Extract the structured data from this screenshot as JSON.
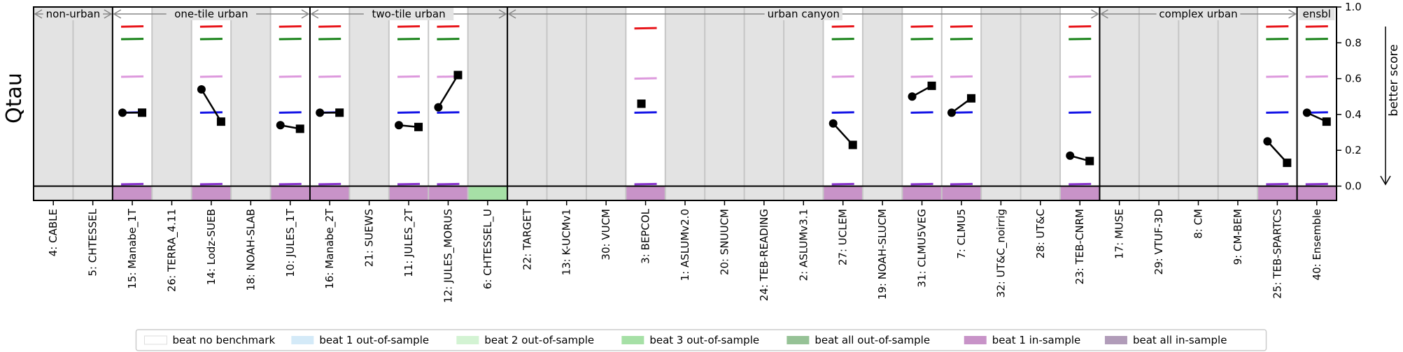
{
  "chart_data": {
    "type": "scatter",
    "ylabel": "Qtau",
    "y2label": "better score",
    "ylim": [
      -0.08,
      1.0
    ],
    "yticks": [
      "0.0",
      "0.2",
      "0.4",
      "0.6",
      "0.8",
      "1.0"
    ],
    "ytick_values": [
      0.0,
      0.2,
      0.4,
      0.6,
      0.8,
      1.0
    ],
    "categories": [
      "4: CABLE",
      "5: CHTESSEL",
      "15: Manabe_1T",
      "26: TERRA_4.11",
      "14: Lodz-SUEB",
      "18: NOAH-SLAB",
      "10: JULES_1T",
      "16: Manabe_2T",
      "21: SUEWS",
      "11: JULES_2T",
      "12: JULES_MORUS",
      "6: CHTESSEL_U",
      "22: TARGET",
      "13: K-UCMv1",
      "30: VUCM",
      "3: BEPCOL",
      "1: ASLUMv2.0",
      "20: SNUUCM",
      "24: TEB-READING",
      "2: ASLUMv3.1",
      "27: UCLEM",
      "19: NOAH-SLUCM",
      "31: CLMU5VEG",
      "7: CLMU5",
      "32: UT&C_noirrig",
      "28: UT&C",
      "23: TEB-CNRM",
      "17: MUSE",
      "29: VTUF-3D",
      "8: CM",
      "9: CM-BEM",
      "25: TEB-SPARTCS",
      "40: Ensemble"
    ],
    "groups": [
      {
        "label": "non-urban",
        "range": [
          0,
          1
        ]
      },
      {
        "label": "one-tile urban",
        "range": [
          2,
          6
        ]
      },
      {
        "label": "two-tile urban",
        "range": [
          7,
          11
        ]
      },
      {
        "label": "urban canyon",
        "range": [
          12,
          26
        ]
      },
      {
        "label": "complex urban",
        "range": [
          27,
          31
        ]
      },
      {
        "label": "ensbl",
        "range": [
          32,
          32
        ]
      }
    ],
    "has_data": [
      2,
      4,
      6,
      7,
      9,
      10,
      15,
      20,
      22,
      23,
      26,
      31,
      32
    ],
    "benchmark_colors": [
      "#e8161b",
      "#168116",
      "#dd99dd",
      "#1414e6",
      "#8833cc"
    ],
    "benchmarks": {
      "2": [
        0.89,
        0.82,
        0.61,
        0.41,
        0.01
      ],
      "4": [
        0.89,
        0.82,
        0.61,
        0.41,
        0.01
      ],
      "6": [
        0.89,
        0.82,
        0.61,
        0.41,
        0.01
      ],
      "7": [
        0.89,
        0.82,
        0.61,
        0.41,
        0.01
      ],
      "9": [
        0.89,
        0.82,
        0.61,
        0.41,
        0.01
      ],
      "10": [
        0.89,
        0.82,
        0.61,
        0.41,
        0.01
      ],
      "15": [
        0.88,
        0.0,
        0.6,
        0.41,
        0.01
      ],
      "20": [
        0.89,
        0.82,
        0.61,
        0.41,
        0.01
      ],
      "22": [
        0.89,
        0.82,
        0.61,
        0.41,
        0.01
      ],
      "23": [
        0.89,
        0.82,
        0.61,
        0.41,
        0.01
      ],
      "26": [
        0.89,
        0.82,
        0.61,
        0.41,
        0.01
      ],
      "31": [
        0.89,
        0.82,
        0.61,
        0.41,
        0.01
      ],
      "32": [
        0.89,
        0.82,
        0.61,
        0.41,
        0.01
      ]
    },
    "model_scores": [
      {
        "index": 2,
        "circle": 0.41,
        "square": 0.41
      },
      {
        "index": 4,
        "circle": 0.54,
        "square": 0.36
      },
      {
        "index": 6,
        "circle": 0.34,
        "square": 0.32
      },
      {
        "index": 7,
        "circle": 0.41,
        "square": 0.41
      },
      {
        "index": 9,
        "circle": 0.34,
        "square": 0.33
      },
      {
        "index": 10,
        "circle": 0.44,
        "square": 0.62
      },
      {
        "index": 15,
        "circle": null,
        "square": 0.46
      },
      {
        "index": 20,
        "circle": 0.35,
        "square": 0.23
      },
      {
        "index": 22,
        "circle": 0.5,
        "square": 0.56
      },
      {
        "index": 23,
        "circle": 0.41,
        "square": 0.49
      },
      {
        "index": 26,
        "circle": 0.17,
        "square": 0.14
      },
      {
        "index": 31,
        "circle": 0.25,
        "square": 0.13
      },
      {
        "index": 32,
        "circle": 0.41,
        "square": 0.36
      }
    ],
    "cell_status": [
      "none",
      "none",
      "beat 1 in-sample",
      "none",
      "beat 1 in-sample",
      "none",
      "beat 1 in-sample",
      "beat 1 in-sample",
      "none",
      "beat 1 in-sample",
      "beat 1 in-sample",
      "beat 3 out-of-sample",
      "none",
      "none",
      "none",
      "beat 1 in-sample",
      "none",
      "none",
      "none",
      "none",
      "beat 1 in-sample",
      "none",
      "beat 1 in-sample",
      "beat 1 in-sample",
      "none",
      "none",
      "beat 1 in-sample",
      "none",
      "none",
      "none",
      "none",
      "beat 1 in-sample",
      "beat 1 in-sample"
    ],
    "legend": [
      {
        "label": "beat no benchmark",
        "color": "#ffffff"
      },
      {
        "label": "beat 1 out-of-sample",
        "color": "#d4eaf8"
      },
      {
        "label": "beat 2 out-of-sample",
        "color": "#d3f3d3"
      },
      {
        "label": "beat 3 out-of-sample",
        "color": "#a6e0a6"
      },
      {
        "label": "beat all out-of-sample",
        "color": "#96c296"
      },
      {
        "label": "beat 1 in-sample",
        "color": "#c893c8"
      },
      {
        "label": "beat all in-sample",
        "color": "#b19cb9"
      }
    ],
    "grid": false,
    "legend_position": "bottom-center"
  }
}
